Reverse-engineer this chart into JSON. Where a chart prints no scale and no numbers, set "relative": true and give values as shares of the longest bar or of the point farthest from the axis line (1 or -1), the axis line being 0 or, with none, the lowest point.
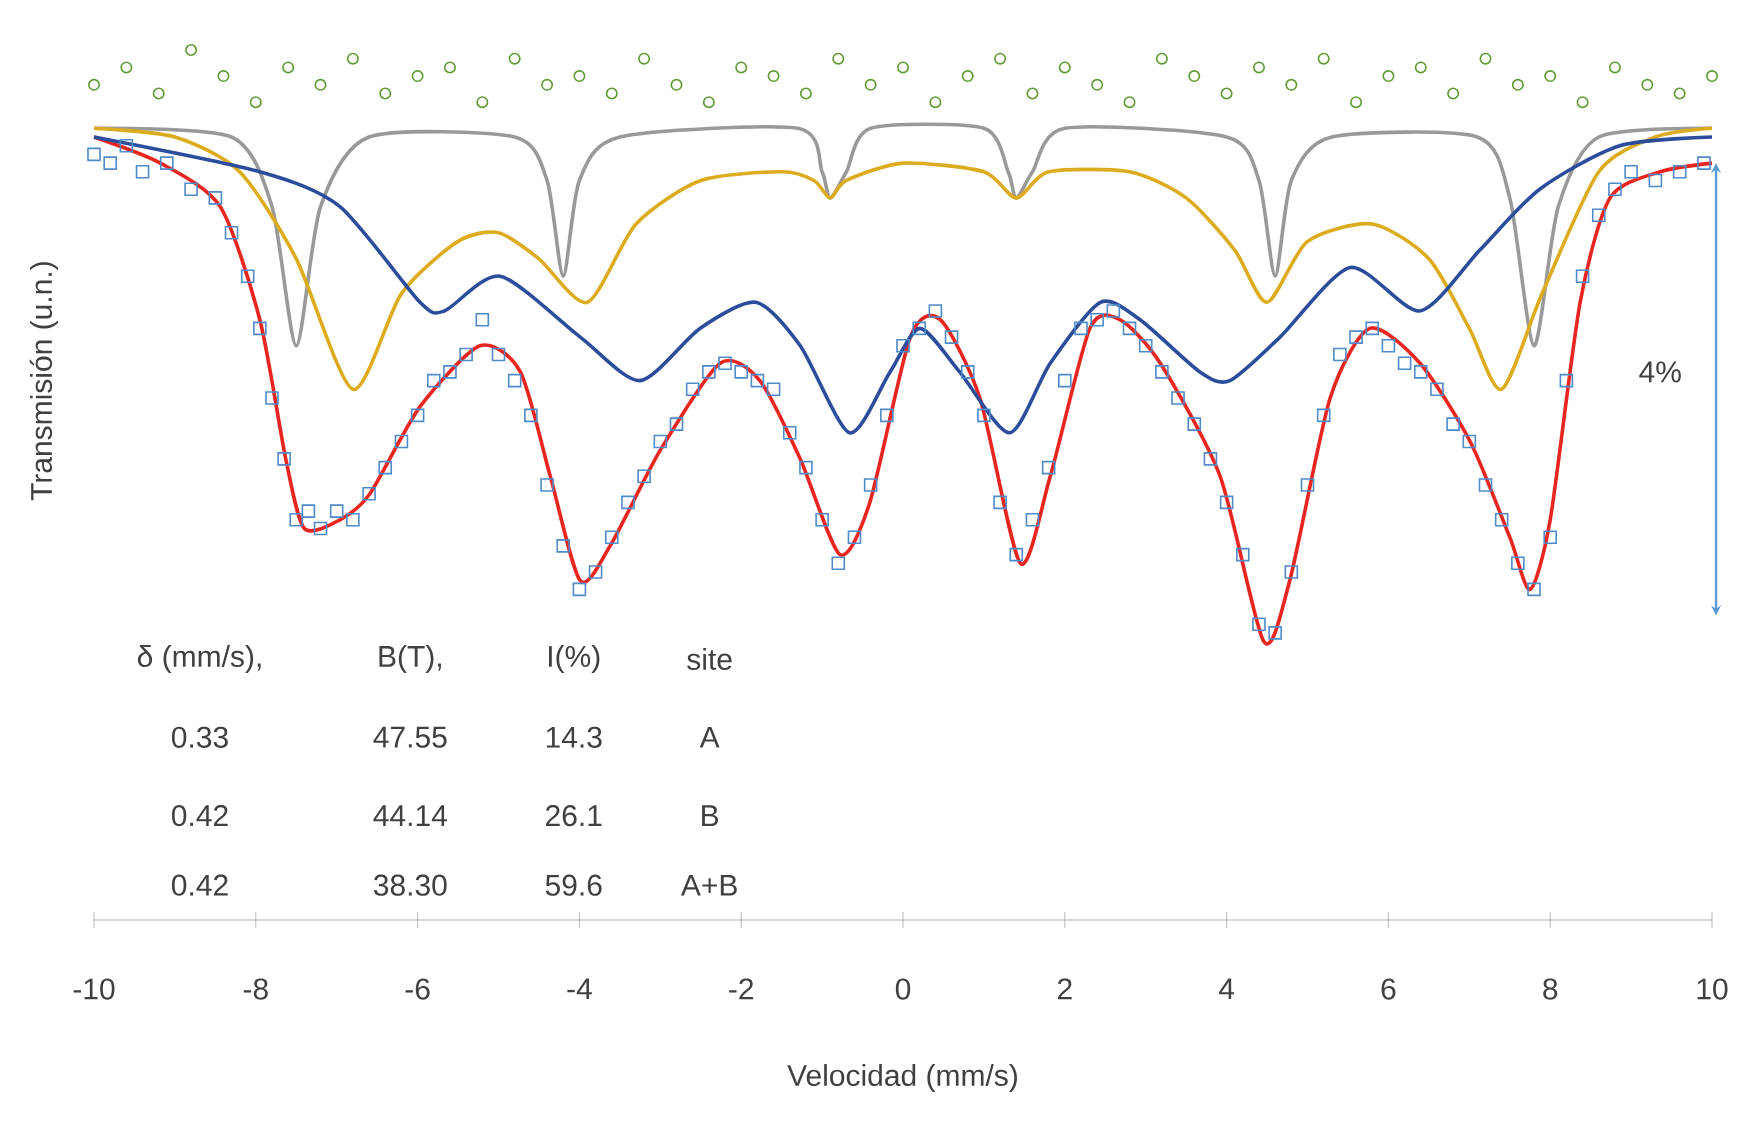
{
  "chart_data": {
    "type": "line",
    "relative": true,
    "xlabel": "Velocidad (mm/s)",
    "ylabel": "Transmisión (u.n.)",
    "xlim": [
      -10,
      10
    ],
    "xticks": [
      -10,
      -8,
      -6,
      -4,
      -2,
      0,
      2,
      4,
      6,
      8,
      10
    ],
    "annotations": [
      "δ (mm/s),",
      "B(T),",
      "I(%)",
      "site",
      "0.33",
      "47.55",
      "14.3",
      "A",
      "0.42",
      "44.14",
      "26.1",
      "B",
      "0.42",
      "38.30",
      "59.6",
      "A+B",
      "4%"
    ],
    "series": [
      {
        "type": "scatter",
        "marker": "circle",
        "color": "#5e9a32",
        "x": [
          -10,
          -9.6,
          -9.2,
          -8.8,
          -8.4,
          -8,
          -7.6,
          -7.2,
          -6.8,
          -6.4,
          -6,
          -5.6,
          -5.2,
          -4.8,
          -4.4,
          -4,
          -3.6,
          -3.2,
          -2.8,
          -2.4,
          -2,
          -1.6,
          -1.2,
          -0.8,
          -0.4,
          0,
          0.4,
          0.8,
          1.2,
          1.6,
          2,
          2.4,
          2.8,
          3.2,
          3.6,
          4,
          4.4,
          4.8,
          5.2,
          5.6,
          6,
          6.4,
          6.8,
          7.2,
          7.6,
          8,
          8.4,
          8.8,
          9.2,
          9.6,
          10
        ],
        "values": [
          0.96,
          0.98,
          0.95,
          1.0,
          0.97,
          0.94,
          0.98,
          0.96,
          0.99,
          0.95,
          0.97,
          0.98,
          0.94,
          0.99,
          0.96,
          0.97,
          0.95,
          0.99,
          0.96,
          0.94,
          0.98,
          0.97,
          0.95,
          0.99,
          0.96,
          0.98,
          0.94,
          0.97,
          0.99,
          0.95,
          0.98,
          0.96,
          0.94,
          0.99,
          0.97,
          0.95,
          0.98,
          0.96,
          0.99,
          0.94,
          0.97,
          0.98,
          0.95,
          0.99,
          0.96,
          0.97,
          0.94,
          0.98,
          0.96,
          0.95,
          0.97
        ]
      },
      {
        "type": "scatter",
        "marker": "square",
        "color": "#4f8ac9",
        "x": [
          -10,
          -9.8,
          -9.6,
          -9.4,
          -9.1,
          -8.8,
          -8.5,
          -8.3,
          -8.1,
          -7.95,
          -7.8,
          -7.65,
          -7.5,
          -7.35,
          -7.2,
          -7,
          -6.8,
          -6.6,
          -6.4,
          -6.2,
          -6,
          -5.8,
          -5.6,
          -5.4,
          -5.2,
          -5,
          -4.8,
          -4.6,
          -4.4,
          -4.2,
          -4,
          -3.8,
          -3.6,
          -3.4,
          -3.2,
          -3,
          -2.8,
          -2.6,
          -2.4,
          -2.2,
          -2,
          -1.8,
          -1.6,
          -1.4,
          -1.2,
          -1,
          -0.8,
          -0.6,
          -0.4,
          -0.2,
          0,
          0.2,
          0.4,
          0.6,
          0.8,
          1,
          1.2,
          1.4,
          1.6,
          1.8,
          2,
          2.2,
          2.4,
          2.6,
          2.8,
          3,
          3.2,
          3.4,
          3.6,
          3.8,
          4,
          4.2,
          4.4,
          4.6,
          4.8,
          5,
          5.2,
          5.4,
          5.6,
          5.8,
          6,
          6.2,
          6.4,
          6.6,
          6.8,
          7,
          7.2,
          7.4,
          7.6,
          7.8,
          8,
          8.2,
          8.4,
          8.6,
          8.8,
          9,
          9.3,
          9.6,
          9.9
        ],
        "values": [
          0.88,
          0.87,
          0.89,
          0.86,
          0.87,
          0.84,
          0.83,
          0.79,
          0.74,
          0.68,
          0.6,
          0.53,
          0.46,
          0.47,
          0.45,
          0.47,
          0.46,
          0.49,
          0.52,
          0.55,
          0.58,
          0.62,
          0.63,
          0.65,
          0.69,
          0.65,
          0.62,
          0.58,
          0.5,
          0.43,
          0.38,
          0.4,
          0.44,
          0.48,
          0.51,
          0.55,
          0.57,
          0.61,
          0.63,
          0.64,
          0.63,
          0.62,
          0.61,
          0.56,
          0.52,
          0.46,
          0.41,
          0.44,
          0.5,
          0.58,
          0.66,
          0.68,
          0.7,
          0.67,
          0.63,
          0.58,
          0.48,
          0.42,
          0.46,
          0.52,
          0.62,
          0.68,
          0.69,
          0.7,
          0.68,
          0.66,
          0.63,
          0.6,
          0.57,
          0.53,
          0.48,
          0.42,
          0.34,
          0.33,
          0.4,
          0.5,
          0.58,
          0.65,
          0.67,
          0.68,
          0.66,
          0.64,
          0.63,
          0.61,
          0.57,
          0.55,
          0.5,
          0.46,
          0.41,
          0.38,
          0.44,
          0.62,
          0.74,
          0.81,
          0.84,
          0.86,
          0.85,
          0.86,
          0.87
        ]
      },
      {
        "color": "#e8251f",
        "x": [
          -10,
          -9.18,
          -8.44,
          -7.95,
          -7.63,
          -7.4,
          -6.96,
          -6.59,
          -5.97,
          -5.23,
          -4.73,
          -4.36,
          -3.99,
          -3.62,
          -3,
          -2.26,
          -1.77,
          -1.27,
          -0.78,
          -0.41,
          0.09,
          0.46,
          0.95,
          1.45,
          1.82,
          2.31,
          2.68,
          3.18,
          3.92,
          4.46,
          4.78,
          5.28,
          5.77,
          6.39,
          7.01,
          7.5,
          7.75,
          8,
          8.37,
          8.74,
          9.36,
          10
        ],
        "values": [
          0.9,
          0.87,
          0.82,
          0.69,
          0.53,
          0.45,
          0.46,
          0.49,
          0.59,
          0.66,
          0.63,
          0.51,
          0.39,
          0.43,
          0.54,
          0.64,
          0.62,
          0.53,
          0.42,
          0.48,
          0.67,
          0.69,
          0.6,
          0.41,
          0.51,
          0.68,
          0.69,
          0.64,
          0.51,
          0.32,
          0.39,
          0.6,
          0.68,
          0.64,
          0.55,
          0.44,
          0.38,
          0.46,
          0.71,
          0.83,
          0.86,
          0.87
        ]
      },
      {
        "color": "#999999",
        "x": [
          -10,
          -8.3,
          -7.8,
          -7.5,
          -7.2,
          -6.6,
          -4.8,
          -4.4,
          -4.2,
          -4,
          -3.5,
          -1.3,
          -1,
          -0.9,
          -0.7,
          -0.4,
          1,
          1.3,
          1.4,
          1.6,
          2,
          4,
          4.4,
          4.6,
          4.8,
          5.3,
          7.1,
          7.5,
          7.8,
          8.1,
          8.6,
          10
        ],
        "values": [
          0.91,
          0.9,
          0.82,
          0.66,
          0.82,
          0.9,
          0.9,
          0.85,
          0.74,
          0.85,
          0.9,
          0.91,
          0.86,
          0.83,
          0.86,
          0.91,
          0.91,
          0.86,
          0.83,
          0.86,
          0.91,
          0.9,
          0.85,
          0.74,
          0.85,
          0.9,
          0.9,
          0.83,
          0.66,
          0.82,
          0.9,
          0.91
        ]
      },
      {
        "color": "#dcac1e",
        "x": [
          -10,
          -9,
          -8.2,
          -7.5,
          -6.8,
          -6.2,
          -5.5,
          -5,
          -4.5,
          -3.9,
          -3.3,
          -2.5,
          -1.5,
          -1.1,
          -0.9,
          -0.7,
          0,
          1,
          1.4,
          1.8,
          2.8,
          3.5,
          4.1,
          4.5,
          5,
          5.8,
          6.5,
          7,
          7.4,
          7.9,
          8.6,
          9.3,
          10
        ],
        "values": [
          0.91,
          0.9,
          0.86,
          0.76,
          0.61,
          0.72,
          0.78,
          0.79,
          0.76,
          0.71,
          0.8,
          0.85,
          0.86,
          0.85,
          0.83,
          0.85,
          0.87,
          0.86,
          0.83,
          0.86,
          0.86,
          0.83,
          0.77,
          0.71,
          0.78,
          0.8,
          0.76,
          0.68,
          0.61,
          0.72,
          0.86,
          0.9,
          0.91
        ]
      },
      {
        "color": "#2c4d9c",
        "x": [
          -10,
          -7.95,
          -6.96,
          -5.97,
          -5.67,
          -4.98,
          -3.99,
          -3.25,
          -2.51,
          -1.82,
          -1.27,
          -0.66,
          -0.16,
          0.21,
          0.7,
          1.32,
          1.82,
          2.44,
          2.93,
          3.67,
          4.04,
          4.66,
          5.53,
          6.39,
          7.13,
          7.87,
          8.86,
          10
        ],
        "values": [
          0.9,
          0.86,
          0.82,
          0.71,
          0.7,
          0.74,
          0.67,
          0.62,
          0.68,
          0.71,
          0.66,
          0.56,
          0.63,
          0.68,
          0.63,
          0.56,
          0.64,
          0.71,
          0.69,
          0.63,
          0.62,
          0.67,
          0.75,
          0.7,
          0.77,
          0.84,
          0.89,
          0.9
        ]
      }
    ]
  }
}
